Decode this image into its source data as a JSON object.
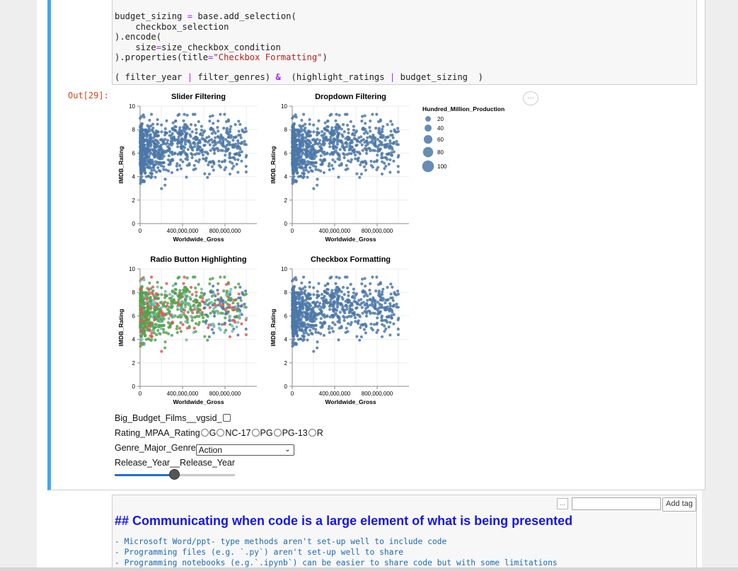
{
  "code": {
    "lines": [
      "budget_sizing = base.add_selection(",
      "    checkbox_selection",
      ").encode(",
      "    size=size_checkbox_condition",
      ").properties(title=\"Checkbox Formatting\")"
    ],
    "last_line": "( filter_year | filter_genres) &  (highlight_ratings | budget_sizing  )"
  },
  "output": {
    "prompt": "Out[29]:",
    "menu": "…"
  },
  "chart_data": [
    {
      "type": "scatter",
      "title": "Slider Filtering",
      "xlabel": "Worldwide_Gross",
      "ylabel": "IMDB_Rating",
      "xticks": [
        "0",
        "400,000,000",
        "800,000,000"
      ],
      "yticks": [
        "0",
        "2",
        "4",
        "6",
        "8",
        "10"
      ],
      "xlim": [
        0,
        1100000000
      ],
      "ylim": [
        0,
        10
      ],
      "color": "#4c78a8"
    },
    {
      "type": "scatter",
      "title": "Dropdown Filtering",
      "xlabel": "Worldwide_Gross",
      "ylabel": "IMDB_Rating",
      "xticks": [
        "0",
        "400,000,000",
        "800,000,000"
      ],
      "yticks": [
        "0",
        "2",
        "4",
        "6",
        "8",
        "10"
      ],
      "xlim": [
        0,
        1100000000
      ],
      "ylim": [
        0,
        10
      ],
      "color": "#4c78a8"
    },
    {
      "type": "scatter",
      "title": "Radio Button Highlighting",
      "xlabel": "Worldwide_Gross",
      "ylabel": "IMDB_Rating",
      "xticks": [
        "0",
        "400,000,000",
        "800,000,000"
      ],
      "yticks": [
        "0",
        "2",
        "4",
        "6",
        "8",
        "10"
      ],
      "xlim": [
        0,
        1100000000
      ],
      "ylim": [
        0,
        10
      ],
      "colors": [
        "#54a24b",
        "#e45756",
        "#72b7b2",
        "#4c78a8"
      ]
    },
    {
      "type": "scatter",
      "title": "Checkbox Formatting",
      "xlabel": "Worldwide_Gross",
      "ylabel": "IMDB_Rating",
      "xticks": [
        "0",
        "400,000,000",
        "800,000,000"
      ],
      "yticks": [
        "0",
        "2",
        "4",
        "6",
        "8",
        "10"
      ],
      "xlim": [
        0,
        1100000000
      ],
      "ylim": [
        0,
        10
      ],
      "color": "#4c78a8"
    }
  ],
  "legend": {
    "title": "Hundred_Million_Production",
    "items": [
      "20",
      "40",
      "60",
      "80",
      "100"
    ]
  },
  "controls": {
    "checkbox_label": "Big_Budget_Films__vgsid_",
    "radio_label": "Rating_MPAA_Rating",
    "radio_options": [
      "G",
      "NC-17",
      "PG",
      "PG-13",
      "R"
    ],
    "genre_label": "Genre_Major_Genre",
    "genre_selected": "Action",
    "year_label": "Release_Year__Release_Year",
    "year_fraction": 0.5
  },
  "markdown": {
    "tag_menu": "...",
    "add_tag": "Add tag",
    "heading": "## Communicating when code is a large element of what is being presented",
    "items": [
      "- Microsoft Word/ppt- type methods aren't set-up well to include code",
      "- Programming files (e.g. `.py`) aren't set-up well to share",
      "- Programming notebooks (e.g.`.ipynb`) can be easier to share code but with some limitations"
    ]
  }
}
